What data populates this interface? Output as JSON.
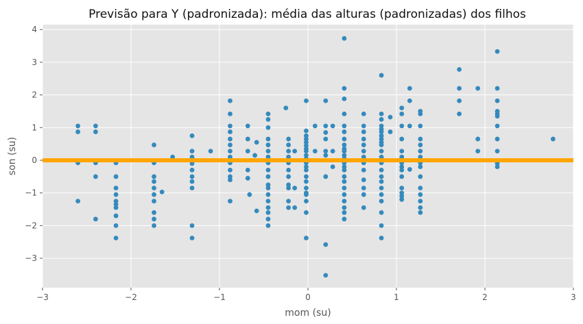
{
  "chart_data": {
    "type": "scatter",
    "title": "Previsão para Y (padronizada): média das alturas (padronizadas) dos filhos",
    "xlabel": "mom (su)",
    "ylabel": "son (su)",
    "xlim": [
      -3,
      3
    ],
    "ylim": [
      -3.9,
      4.15
    ],
    "xticks": [
      -3,
      -2,
      -1,
      0,
      1,
      2,
      3
    ],
    "yticks": [
      -3,
      -2,
      -1,
      0,
      1,
      2,
      3,
      4
    ],
    "grid": true,
    "point_color": "#348abd",
    "prediction_line": {
      "y": 0,
      "color": "#ffa500"
    },
    "background": "#e5e5e5",
    "points": [
      [
        -2.6,
        1.05
      ],
      [
        -2.6,
        0.87
      ],
      [
        -2.6,
        -0.08
      ],
      [
        -2.6,
        -1.25
      ],
      [
        -2.4,
        1.05
      ],
      [
        -2.4,
        0.87
      ],
      [
        -2.4,
        -0.08
      ],
      [
        -2.4,
        -0.5
      ],
      [
        -2.4,
        -1.8
      ],
      [
        -2.17,
        -0.08
      ],
      [
        -2.17,
        -0.5
      ],
      [
        -2.17,
        -0.85
      ],
      [
        -2.17,
        -1.05
      ],
      [
        -2.17,
        -1.25
      ],
      [
        -2.17,
        -1.35
      ],
      [
        -2.17,
        -1.45
      ],
      [
        -2.17,
        -1.7
      ],
      [
        -2.17,
        -2.0
      ],
      [
        -2.17,
        -2.38
      ],
      [
        -1.74,
        0.47
      ],
      [
        -1.74,
        -0.08
      ],
      [
        -1.74,
        -0.5
      ],
      [
        -1.74,
        -0.65
      ],
      [
        -1.74,
        -0.85
      ],
      [
        -1.74,
        -1.05
      ],
      [
        -1.74,
        -1.25
      ],
      [
        -1.74,
        -1.6
      ],
      [
        -1.74,
        -1.8
      ],
      [
        -1.74,
        -2.0
      ],
      [
        -1.65,
        -0.97
      ],
      [
        -1.53,
        0.1
      ],
      [
        -1.31,
        0.75
      ],
      [
        -1.31,
        0.28
      ],
      [
        -1.31,
        0.1
      ],
      [
        -1.31,
        -0.1
      ],
      [
        -1.31,
        -0.3
      ],
      [
        -1.31,
        -0.5
      ],
      [
        -1.31,
        -0.65
      ],
      [
        -1.31,
        -0.85
      ],
      [
        -1.31,
        -2.0
      ],
      [
        -1.31,
        -2.38
      ],
      [
        -1.1,
        0.28
      ],
      [
        -0.88,
        1.82
      ],
      [
        -0.88,
        1.42
      ],
      [
        -0.88,
        1.05
      ],
      [
        -0.88,
        0.87
      ],
      [
        -0.88,
        0.65
      ],
      [
        -0.88,
        0.47
      ],
      [
        -0.88,
        0.28
      ],
      [
        -0.88,
        0.1
      ],
      [
        -0.88,
        -0.08
      ],
      [
        -0.88,
        -0.3
      ],
      [
        -0.88,
        -0.5
      ],
      [
        -0.88,
        -0.6
      ],
      [
        -0.88,
        -1.25
      ],
      [
        -0.68,
        1.05
      ],
      [
        -0.68,
        0.65
      ],
      [
        -0.68,
        0.28
      ],
      [
        -0.68,
        -0.3
      ],
      [
        -0.68,
        -0.55
      ],
      [
        -0.66,
        -1.05
      ],
      [
        -0.6,
        0.15
      ],
      [
        -0.58,
        0.55
      ],
      [
        -0.58,
        -1.55
      ],
      [
        -0.45,
        1.42
      ],
      [
        -0.45,
        1.25
      ],
      [
        -0.45,
        1.0
      ],
      [
        -0.45,
        0.65
      ],
      [
        -0.45,
        0.47
      ],
      [
        -0.45,
        0.28
      ],
      [
        -0.45,
        0.1
      ],
      [
        -0.45,
        -0.08
      ],
      [
        -0.45,
        -0.3
      ],
      [
        -0.45,
        -0.5
      ],
      [
        -0.45,
        -0.75
      ],
      [
        -0.45,
        -0.85
      ],
      [
        -0.45,
        -1.05
      ],
      [
        -0.45,
        -1.25
      ],
      [
        -0.45,
        -1.45
      ],
      [
        -0.45,
        -1.6
      ],
      [
        -0.45,
        -1.8
      ],
      [
        -0.45,
        -2.0
      ],
      [
        -0.25,
        1.6
      ],
      [
        -0.22,
        0.65
      ],
      [
        -0.22,
        0.47
      ],
      [
        -0.22,
        0.28
      ],
      [
        -0.22,
        0.1
      ],
      [
        -0.22,
        -0.08
      ],
      [
        -0.22,
        -0.3
      ],
      [
        -0.22,
        -0.5
      ],
      [
        -0.22,
        -0.75
      ],
      [
        -0.22,
        -0.85
      ],
      [
        -0.22,
        -1.25
      ],
      [
        -0.22,
        -1.45
      ],
      [
        -0.15,
        0.28
      ],
      [
        -0.15,
        -0.85
      ],
      [
        -0.15,
        -1.45
      ],
      [
        -0.02,
        1.82
      ],
      [
        -0.02,
        0.9
      ],
      [
        -0.02,
        0.75
      ],
      [
        -0.02,
        0.65
      ],
      [
        -0.02,
        0.55
      ],
      [
        -0.02,
        0.45
      ],
      [
        -0.02,
        0.35
      ],
      [
        -0.02,
        0.28
      ],
      [
        -0.02,
        0.15
      ],
      [
        -0.02,
        0.05
      ],
      [
        -0.02,
        -0.08
      ],
      [
        -0.02,
        -0.2
      ],
      [
        -0.02,
        -0.3
      ],
      [
        -0.02,
        -0.5
      ],
      [
        -0.02,
        -0.65
      ],
      [
        -0.02,
        -0.85
      ],
      [
        -0.02,
        -1.0
      ],
      [
        -0.02,
        -1.05
      ],
      [
        -0.02,
        -1.25
      ],
      [
        -0.02,
        -1.6
      ],
      [
        -0.02,
        -2.38
      ],
      [
        0.08,
        1.05
      ],
      [
        0.08,
        0.28
      ],
      [
        0.2,
        1.82
      ],
      [
        0.2,
        1.05
      ],
      [
        0.2,
        0.85
      ],
      [
        0.2,
        0.65
      ],
      [
        0.2,
        0.28
      ],
      [
        0.2,
        0.15
      ],
      [
        0.2,
        -0.5
      ],
      [
        0.2,
        -2.58
      ],
      [
        0.2,
        -3.52
      ],
      [
        0.28,
        1.05
      ],
      [
        0.28,
        0.28
      ],
      [
        0.28,
        -0.2
      ],
      [
        0.41,
        3.73
      ],
      [
        0.41,
        2.2
      ],
      [
        0.41,
        1.88
      ],
      [
        0.41,
        1.42
      ],
      [
        0.41,
        1.05
      ],
      [
        0.41,
        0.87
      ],
      [
        0.41,
        0.65
      ],
      [
        0.41,
        0.47
      ],
      [
        0.41,
        0.35
      ],
      [
        0.41,
        0.28
      ],
      [
        0.41,
        0.15
      ],
      [
        0.41,
        0.05
      ],
      [
        0.41,
        -0.08
      ],
      [
        0.41,
        -0.2
      ],
      [
        0.41,
        -0.3
      ],
      [
        0.41,
        -0.5
      ],
      [
        0.41,
        -0.65
      ],
      [
        0.41,
        -0.85
      ],
      [
        0.41,
        -1.05
      ],
      [
        0.41,
        -1.25
      ],
      [
        0.41,
        -1.45
      ],
      [
        0.41,
        -1.6
      ],
      [
        0.41,
        -1.8
      ],
      [
        0.63,
        1.42
      ],
      [
        0.63,
        1.05
      ],
      [
        0.63,
        0.87
      ],
      [
        0.63,
        0.65
      ],
      [
        0.63,
        0.47
      ],
      [
        0.63,
        0.28
      ],
      [
        0.63,
        0.1
      ],
      [
        0.63,
        -0.08
      ],
      [
        0.63,
        -0.3
      ],
      [
        0.63,
        -0.6
      ],
      [
        0.63,
        -0.85
      ],
      [
        0.63,
        -1.05
      ],
      [
        0.63,
        -1.45
      ],
      [
        0.83,
        2.6
      ],
      [
        0.83,
        1.42
      ],
      [
        0.83,
        1.25
      ],
      [
        0.83,
        1.05
      ],
      [
        0.83,
        0.95
      ],
      [
        0.83,
        0.87
      ],
      [
        0.83,
        0.75
      ],
      [
        0.83,
        0.65
      ],
      [
        0.83,
        0.55
      ],
      [
        0.83,
        0.47
      ],
      [
        0.83,
        0.28
      ],
      [
        0.83,
        0.1
      ],
      [
        0.83,
        -0.08
      ],
      [
        0.83,
        -0.3
      ],
      [
        0.83,
        -0.5
      ],
      [
        0.83,
        -0.65
      ],
      [
        0.83,
        -0.85
      ],
      [
        0.83,
        -1.05
      ],
      [
        0.83,
        -1.25
      ],
      [
        0.83,
        -1.6
      ],
      [
        0.83,
        -2.0
      ],
      [
        0.83,
        -2.38
      ],
      [
        0.93,
        1.32
      ],
      [
        0.93,
        0.87
      ],
      [
        1.06,
        1.6
      ],
      [
        1.06,
        1.42
      ],
      [
        1.06,
        1.05
      ],
      [
        1.06,
        0.65
      ],
      [
        1.06,
        0.28
      ],
      [
        1.06,
        0.1
      ],
      [
        1.06,
        -0.08
      ],
      [
        1.06,
        -0.2
      ],
      [
        1.06,
        -0.3
      ],
      [
        1.06,
        -0.5
      ],
      [
        1.06,
        -0.85
      ],
      [
        1.06,
        -1.0
      ],
      [
        1.06,
        -1.1
      ],
      [
        1.06,
        -1.2
      ],
      [
        1.15,
        2.2
      ],
      [
        1.15,
        1.82
      ],
      [
        1.15,
        1.05
      ],
      [
        1.15,
        -0.28
      ],
      [
        1.27,
        1.5
      ],
      [
        1.27,
        1.42
      ],
      [
        1.27,
        1.05
      ],
      [
        1.27,
        0.65
      ],
      [
        1.27,
        0.47
      ],
      [
        1.27,
        0.28
      ],
      [
        1.27,
        0.1
      ],
      [
        1.27,
        -0.08
      ],
      [
        1.27,
        -0.2
      ],
      [
        1.27,
        -0.5
      ],
      [
        1.27,
        -0.85
      ],
      [
        1.27,
        -1.05
      ],
      [
        1.27,
        -1.25
      ],
      [
        1.27,
        -1.45
      ],
      [
        1.27,
        -1.6
      ],
      [
        1.71,
        2.78
      ],
      [
        1.71,
        2.2
      ],
      [
        1.71,
        1.82
      ],
      [
        1.71,
        1.42
      ],
      [
        1.92,
        2.2
      ],
      [
        1.92,
        0.65
      ],
      [
        1.92,
        0.28
      ],
      [
        2.14,
        3.33
      ],
      [
        2.14,
        2.2
      ],
      [
        2.14,
        1.82
      ],
      [
        2.14,
        1.5
      ],
      [
        2.14,
        1.42
      ],
      [
        2.14,
        1.35
      ],
      [
        2.14,
        1.05
      ],
      [
        2.14,
        0.65
      ],
      [
        2.14,
        0.28
      ],
      [
        2.14,
        -0.1
      ],
      [
        2.14,
        -0.2
      ],
      [
        2.77,
        0.65
      ]
    ]
  }
}
